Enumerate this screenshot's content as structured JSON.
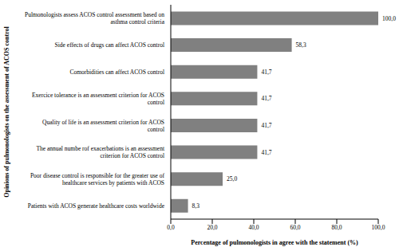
{
  "chart_data": {
    "type": "bar",
    "orientation": "horizontal",
    "xlabel": "Percentage of pulmonologists in agree with the statement (%)",
    "ylabel": "Opinions of pulmonologists on the assessment of ACOS control",
    "categories": [
      "Pulmonologists assess ACOS control assessment based on asthma control criteria",
      "Side effects of drugs can affect ACOS control",
      "Comorbidities can affect ACOS control",
      "Exercice tolerance is an assessment criterion for ACOS control",
      "Quality of life is an assessment criterion for ACOS control",
      "The annual numbe rof exacerbations is an assessment criterion for ACOS control",
      "Poor disease control is responsible for the greater use of healthcare services by patients with ACOS",
      "Patients with ACOS generate healthcare costs worldwide"
    ],
    "values": [
      100.0,
      58.3,
      41.7,
      41.7,
      41.7,
      41.7,
      25.0,
      8.3
    ],
    "value_labels": [
      "100,0",
      "58,3",
      "41,7",
      "41,7",
      "41,7",
      "41,7",
      "25,0",
      "8,3"
    ],
    "data_labels": true,
    "color": "#808080",
    "xlim": [
      0,
      100
    ],
    "xticks": [
      {
        "value": 0,
        "label": "0,0"
      },
      {
        "value": 20,
        "label": "20,0"
      },
      {
        "value": 40,
        "label": "40,0"
      },
      {
        "value": 60,
        "label": "60,0"
      },
      {
        "value": 80,
        "label": "80,0"
      },
      {
        "value": 100,
        "label": "100,0"
      }
    ],
    "grid": false
  }
}
